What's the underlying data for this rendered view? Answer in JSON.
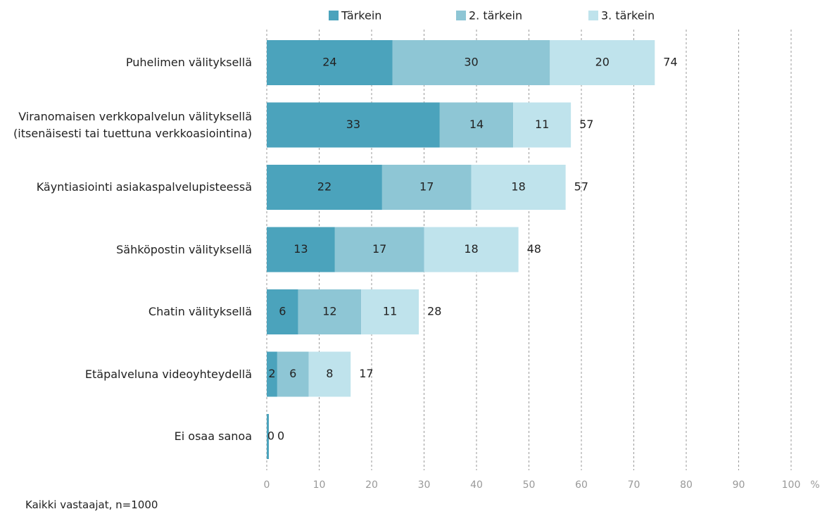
{
  "chart_data": {
    "type": "stacked_barh",
    "categories": [
      "Puhelimen välityksellä",
      "Viranomaisen verkkopalvelun välityksellä (itsenäisesti tai tuettuna verkkoasiointina)",
      "Käyntiasiointi asiakaspalvelupisteessä",
      "Sähköpostin välityksellä",
      "Chatin välityksellä",
      "Etäpalveluna videoyhteydellä",
      "Ei osaa sanoa"
    ],
    "series": [
      {
        "name": "Tärkein",
        "color": "#4ba3bc",
        "values": [
          24,
          33,
          22,
          13,
          6,
          2,
          0.4
        ],
        "value_labels": [
          "24",
          "33",
          "22",
          "13",
          "6",
          "2",
          "0"
        ]
      },
      {
        "name": "2. tärkein",
        "color": "#8ec6d5",
        "values": [
          30,
          14,
          17,
          17,
          12,
          6,
          0
        ]
      },
      {
        "name": "3. tärkein",
        "color": "#bfe3ec",
        "values": [
          20,
          11,
          18,
          18,
          11,
          8,
          0
        ]
      }
    ],
    "totals": [
      74,
      57,
      57,
      48,
      28,
      17,
      0
    ],
    "xlim": [
      0,
      100
    ],
    "xticks": [
      0,
      10,
      20,
      30,
      40,
      50,
      60,
      70,
      80,
      90,
      100
    ],
    "x_unit": "%",
    "grid": true,
    "legend": "top",
    "footnote": "Kaikki vastaajat, n=1000"
  }
}
